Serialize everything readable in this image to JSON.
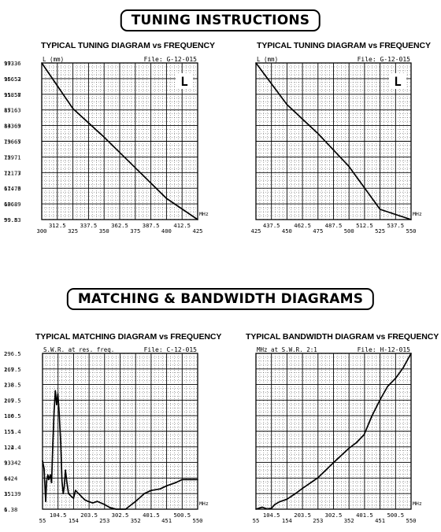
{
  "sections": {
    "tuning_banner": "TUNING INSTRUCTIONS",
    "matching_banner": "MATCHING & BANDWIDTH DIAGRAMS"
  },
  "charts": [
    {
      "title": "TYPICAL TUNING DIAGRAM vs FREQUENCY",
      "ylabel": "L (mm)",
      "file": "File: G-12-015",
      "badge": "L",
      "unit": "MHz",
      "yticks": [
        "173.6",
        "166.2",
        "158.8",
        "151.3",
        "143.9",
        "136.5",
        "129.1",
        "121.7",
        "114.3",
        "106.9",
        "99.5"
      ],
      "xticks": [
        "300",
        "312.5",
        "325",
        "337.5",
        "350",
        "362.5",
        "375",
        "387.5",
        "400",
        "412.5",
        "425"
      ]
    },
    {
      "title": "TYPICAL TUNING DIAGRAM vs FREQUENCY",
      "ylabel": "L (mm)",
      "file": "File: G-12-015",
      "badge": "L",
      "unit": "MHz",
      "yticks": [
        "99.3",
        "95.53",
        "91.57",
        "87.6",
        "83.63",
        "79.67",
        "75.7",
        "71.73",
        "67.76",
        "63.8",
        "59.83"
      ],
      "xticks": [
        "425",
        "437.5",
        "450",
        "462.5",
        "475",
        "487.5",
        "500",
        "512.5",
        "525",
        "537.5",
        "550"
      ]
    },
    {
      "title": "TYPICAL MATCHING DIAGRAM vs FREQUENCY",
      "ylabel": "S.W.R. at res. freq.",
      "file": "File: C-12-015",
      "badge": "",
      "unit": "MHz",
      "yticks": [
        "2",
        "1.9",
        "1.8",
        "1.7",
        "1.6",
        "1.5",
        "1.4",
        "1.3",
        "1.2",
        "1.1",
        "1"
      ],
      "xticks": [
        "55",
        "104.5",
        "154",
        "203.5",
        "253",
        "302.5",
        "352",
        "401.5",
        "451",
        "500.5",
        "550"
      ]
    },
    {
      "title": "TYPICAL BANDWIDTH DIAGRAM vs FREQUENCY",
      "ylabel": "MHz at S.W.R. 2:1",
      "file": "File: H-12-015",
      "badge": "",
      "unit": "MHz",
      "yticks": [
        "296.5",
        "267.5",
        "238.5",
        "209.5",
        "180.5",
        "151.4",
        "122.4",
        "93.42",
        "64.4",
        "35.39",
        "6.38"
      ],
      "xticks": [
        "55",
        "104.5",
        "154",
        "203.5",
        "253",
        "302.5",
        "352",
        "401.5",
        "451",
        "500.5",
        "550"
      ]
    }
  ],
  "chart_data": [
    {
      "type": "line",
      "title": "TYPICAL TUNING DIAGRAM vs FREQUENCY",
      "xlabel": "MHz",
      "ylabel": "L (mm)",
      "xlim": [
        300,
        425
      ],
      "ylim": [
        99.5,
        173.6
      ],
      "grid": true,
      "x": [
        300,
        325,
        350,
        375,
        400,
        425
      ],
      "y": [
        173.6,
        152.0,
        138.5,
        124.0,
        109.5,
        99.5
      ]
    },
    {
      "type": "line",
      "title": "TYPICAL TUNING DIAGRAM vs FREQUENCY",
      "xlabel": "MHz",
      "ylabel": "L (mm)",
      "xlim": [
        425,
        550
      ],
      "ylim": [
        59.83,
        99.3
      ],
      "grid": true,
      "x": [
        425,
        450,
        475,
        500,
        525,
        550
      ],
      "y": [
        99.3,
        88.8,
        81.5,
        73.2,
        62.4,
        59.83
      ]
    },
    {
      "type": "line",
      "title": "TYPICAL MATCHING DIAGRAM vs FREQUENCY",
      "xlabel": "MHz",
      "ylabel": "S.W.R. at res. freq.",
      "xlim": [
        55,
        550
      ],
      "ylim": [
        1,
        2
      ],
      "grid": true,
      "x": [
        55,
        60,
        65,
        68,
        72,
        75,
        80,
        84,
        88,
        92,
        96,
        100,
        104,
        108,
        113,
        117,
        121,
        124,
        128,
        133,
        138,
        143,
        148,
        154,
        160,
        170,
        180,
        190,
        200,
        215,
        230,
        253,
        270,
        290,
        320,
        352,
        380,
        401.5,
        430,
        451,
        480,
        500.5,
        530,
        550
      ],
      "y": [
        1.31,
        1.26,
        1.05,
        1.18,
        1.22,
        1.19,
        1.22,
        1.17,
        1.42,
        1.63,
        1.76,
        1.67,
        1.74,
        1.62,
        1.43,
        1.18,
        1.1,
        1.14,
        1.25,
        1.17,
        1.1,
        1.09,
        1.08,
        1.07,
        1.12,
        1.1,
        1.08,
        1.06,
        1.05,
        1.04,
        1.05,
        1.03,
        1.01,
        1.0,
        1.0,
        1.05,
        1.1,
        1.12,
        1.13,
        1.15,
        1.17,
        1.19,
        1.19,
        1.19
      ]
    },
    {
      "type": "line",
      "title": "TYPICAL BANDWIDTH DIAGRAM vs FREQUENCY",
      "xlabel": "MHz",
      "ylabel": "MHz at S.W.R. 2:1",
      "xlim": [
        55,
        550
      ],
      "ylim": [
        6.38,
        296.5
      ],
      "grid": true,
      "x": [
        55,
        75,
        90,
        104.5,
        115,
        130,
        154,
        180,
        203.5,
        253,
        302.5,
        352,
        375,
        400,
        425,
        451,
        475,
        500.5,
        525,
        550
      ],
      "y": [
        6.5,
        10,
        7,
        8,
        15,
        20,
        25,
        35,
        45,
        65,
        93,
        120,
        130,
        145,
        180,
        210,
        235,
        250,
        270,
        296.5
      ]
    }
  ]
}
